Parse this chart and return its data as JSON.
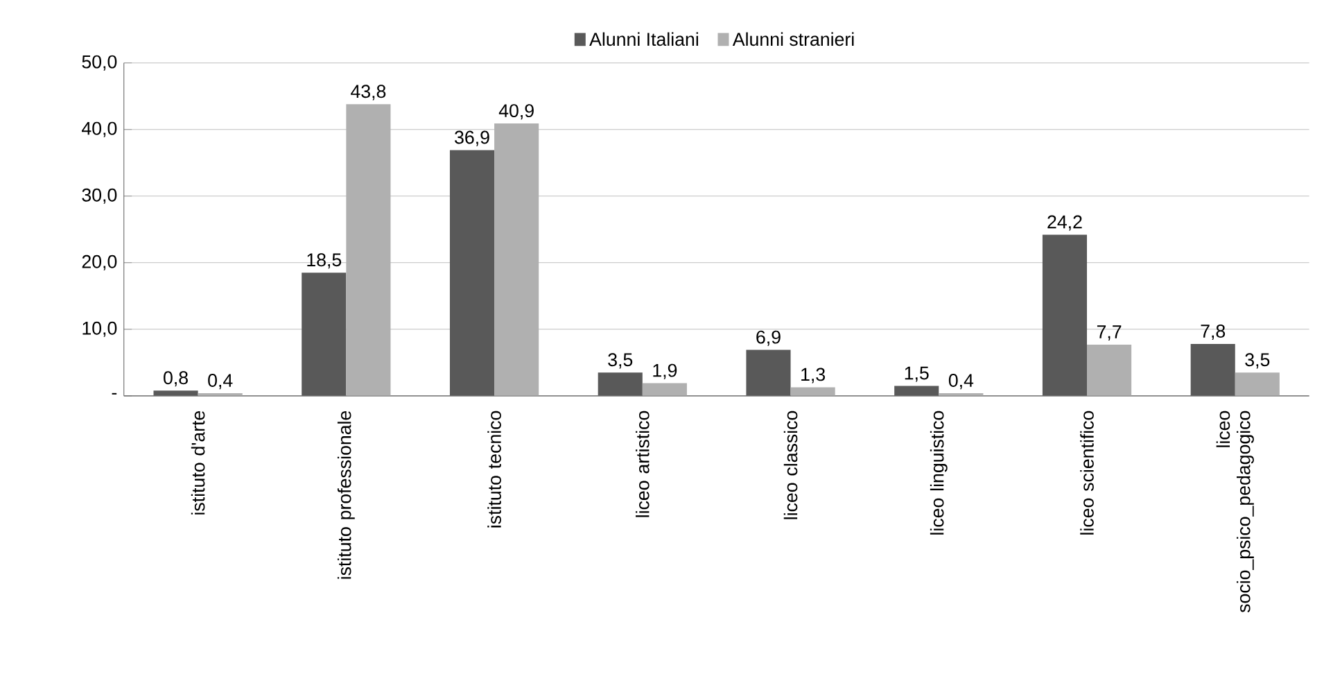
{
  "chart_data": {
    "type": "bar",
    "categories": [
      "istituto d'arte",
      "istituto professionale",
      "istituto tecnico",
      "liceo artistico",
      "liceo classico",
      "liceo linguistico",
      "liceo scientifico",
      "liceo socio_psico_pedagogico"
    ],
    "series": [
      {
        "name": "Alunni Italiani",
        "color": "#595959",
        "values": [
          0.8,
          18.5,
          36.9,
          3.5,
          6.9,
          1.5,
          24.2,
          7.8
        ],
        "value_labels": [
          "0,8",
          "18,5",
          "36,9",
          "3,5",
          "6,9",
          "1,5",
          "24,2",
          "7,8"
        ]
      },
      {
        "name": "Alunni stranieri",
        "color": "#b0b0b0",
        "values": [
          0.4,
          43.8,
          40.9,
          1.9,
          1.3,
          0.4,
          7.7,
          3.5
        ],
        "value_labels": [
          "0,4",
          "43,8",
          "40,9",
          "1,9",
          "1,3",
          "0,4",
          "7,7",
          "3,5"
        ]
      }
    ],
    "ylim": [
      0,
      50
    ],
    "yticks": [
      {
        "value": 0,
        "label": "-"
      },
      {
        "value": 10,
        "label": "10,0"
      },
      {
        "value": 20,
        "label": "20,0"
      },
      {
        "value": 30,
        "label": "30,0"
      },
      {
        "value": 40,
        "label": "40,0"
      },
      {
        "value": 50,
        "label": "50,0"
      }
    ],
    "grid": "y",
    "legend": "top"
  }
}
